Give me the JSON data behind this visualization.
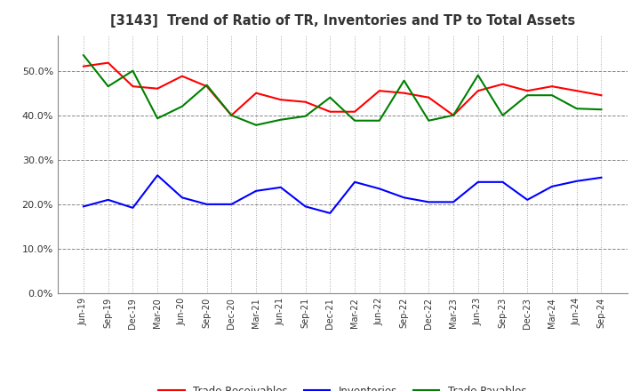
{
  "title": "[3143]  Trend of Ratio of TR, Inventories and TP to Total Assets",
  "x_labels": [
    "Jun-19",
    "Sep-19",
    "Dec-19",
    "Mar-20",
    "Jun-20",
    "Sep-20",
    "Dec-20",
    "Mar-21",
    "Jun-21",
    "Sep-21",
    "Dec-21",
    "Mar-22",
    "Jun-22",
    "Sep-22",
    "Dec-22",
    "Mar-23",
    "Jun-23",
    "Sep-23",
    "Dec-23",
    "Mar-24",
    "Jun-24",
    "Sep-24"
  ],
  "trade_receivables": [
    0.51,
    0.518,
    0.465,
    0.46,
    0.488,
    0.465,
    0.4,
    0.45,
    0.435,
    0.43,
    0.408,
    0.408,
    0.455,
    0.45,
    0.44,
    0.4,
    0.455,
    0.47,
    0.455,
    0.465,
    0.455,
    0.445
  ],
  "inventories": [
    0.195,
    0.21,
    0.192,
    0.265,
    0.215,
    0.2,
    0.2,
    0.23,
    0.238,
    0.195,
    0.18,
    0.25,
    0.235,
    0.215,
    0.205,
    0.205,
    0.25,
    0.25,
    0.21,
    0.24,
    0.252,
    0.26
  ],
  "trade_payables": [
    0.535,
    0.465,
    0.5,
    0.393,
    0.42,
    0.468,
    0.4,
    0.378,
    0.39,
    0.398,
    0.44,
    0.388,
    0.388,
    0.478,
    0.388,
    0.4,
    0.49,
    0.4,
    0.445,
    0.445,
    0.415,
    0.413
  ],
  "tr_color": "#FF0000",
  "inv_color": "#0000FF",
  "tp_color": "#008000",
  "ylim": [
    0.0,
    0.58
  ],
  "yticks": [
    0.0,
    0.1,
    0.2,
    0.3,
    0.4,
    0.5
  ],
  "bg_color": "#FFFFFF",
  "grid_color_h": "#888888",
  "grid_color_v": "#AAAAAA",
  "legend_labels": [
    "Trade Receivables",
    "Inventories",
    "Trade Payables"
  ]
}
